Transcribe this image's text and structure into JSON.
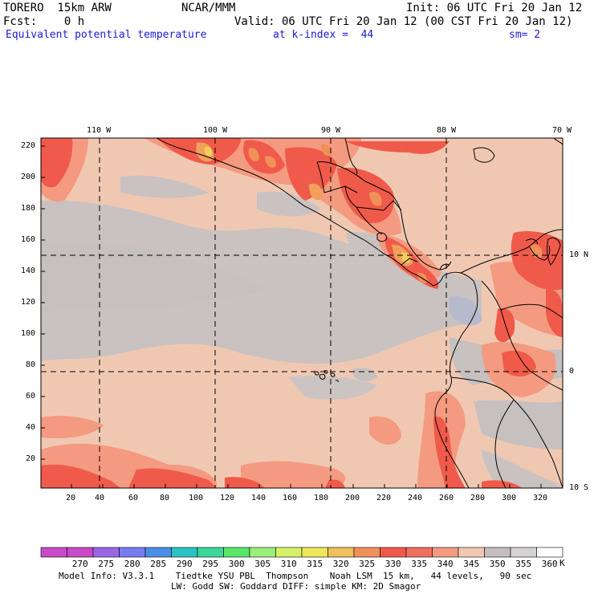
{
  "header": {
    "model": "TORERO  15km ARW",
    "org": "NCAR/MMM",
    "init": "Init: 06 UTC Fri 20 Jan 12",
    "fcst": "Fcst:    0 h",
    "valid": "Valid: 06 UTC Fri 20 Jan 12 (00 CST Fri 20 Jan 12)",
    "field": "Equivalent potential temperature",
    "level": "at k-index =  44",
    "smooth": "sm= 2"
  },
  "map": {
    "lon_labels": [
      "110 W",
      "100 W",
      "90 W",
      "80 W",
      "70 W"
    ],
    "lat_labels": [
      "10 N",
      "0",
      "10 S"
    ],
    "y_ticks": [
      "220",
      "200",
      "180",
      "160",
      "140",
      "120",
      "100",
      "80",
      "60",
      "40",
      "20"
    ],
    "x_ticks": [
      "20",
      "40",
      "60",
      "80",
      "100",
      "120",
      "140",
      "160",
      "180",
      "200",
      "220",
      "240",
      "260",
      "280",
      "300",
      "320"
    ]
  },
  "colorbar": {
    "labels": [
      "270",
      "275",
      "280",
      "285",
      "290",
      "295",
      "300",
      "305",
      "310",
      "315",
      "320",
      "325",
      "330",
      "335",
      "340",
      "345",
      "350",
      "355",
      "360"
    ],
    "unit": "K",
    "colors": [
      "#c84ac8",
      "#9a66e6",
      "#7a7af0",
      "#4a8ee6",
      "#2ac2c2",
      "#3ad69a",
      "#5ae66a",
      "#9af07a",
      "#d6f06a",
      "#f0e65a",
      "#f0c05a",
      "#f0905a",
      "#f05a4a",
      "#f07060",
      "#f49a80",
      "#f0c8b2",
      "#c4bebe",
      "#d6d2d2",
      "#ffffff"
    ]
  },
  "footer": {
    "line1": "Model Info: V3.3.1    Tiedtke YSU PBL  Thompson    Noah LSM  15 km,   44 levels,   90 sec",
    "line2": "LW: Godd SW: Goddard DIFF: simple KM: 2D Smagor"
  }
}
